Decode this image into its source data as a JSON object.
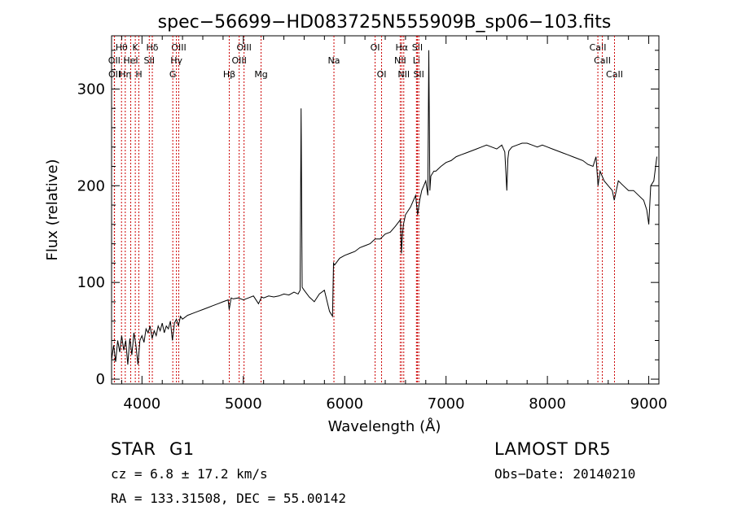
{
  "chart_data": {
    "type": "line",
    "title": "spec−56699−HD083725N555909B_sp06−103.fits",
    "xlabel": "Wavelength (Å)",
    "ylabel": "Flux (relative)",
    "xlim": [
      3700,
      9100
    ],
    "ylim": [
      -5,
      355
    ],
    "x_ticks": [
      4000,
      5000,
      6000,
      7000,
      8000,
      9000
    ],
    "y_ticks": [
      0,
      100,
      200,
      300
    ],
    "grid": false,
    "line_color": "#000000",
    "marker_color": "#cc0000",
    "series": [
      {
        "x": [
          3700,
          3720,
          3740,
          3760,
          3780,
          3800,
          3820,
          3840,
          3860,
          3880,
          3900,
          3920,
          3940,
          3960,
          3980,
          4000,
          4020,
          4040,
          4060,
          4080,
          4100,
          4120,
          4140,
          4160,
          4180,
          4200,
          4220,
          4240,
          4260,
          4280,
          4300,
          4320,
          4340,
          4360,
          4380,
          4400,
          4450,
          4500,
          4550,
          4600,
          4650,
          4700,
          4750,
          4800,
          4850,
          4860,
          4880,
          4900,
          4950,
          5000,
          5050,
          5100,
          5150,
          5180,
          5200,
          5250,
          5300,
          5350,
          5400,
          5450,
          5500,
          5540,
          5560,
          5570,
          5580,
          5600,
          5650,
          5700,
          5750,
          5800,
          5850,
          5880,
          5890,
          5900,
          5950,
          6000,
          6050,
          6100,
          6150,
          6200,
          6250,
          6300,
          6350,
          6400,
          6450,
          6500,
          6550,
          6560,
          6570,
          6580,
          6600,
          6650,
          6700,
          6720,
          6740,
          6760,
          6780,
          6800,
          6820,
          6830,
          6840,
          6850,
          6880,
          6900,
          6950,
          7000,
          7050,
          7100,
          7150,
          7200,
          7250,
          7300,
          7350,
          7400,
          7450,
          7500,
          7550,
          7580,
          7600,
          7610,
          7620,
          7650,
          7700,
          7750,
          7800,
          7850,
          7900,
          7950,
          8000,
          8050,
          8100,
          8150,
          8200,
          8250,
          8300,
          8350,
          8400,
          8450,
          8480,
          8500,
          8520,
          8540,
          8560,
          8600,
          8640,
          8660,
          8700,
          8750,
          8800,
          8850,
          8900,
          8950,
          8980,
          9000,
          9020,
          9050,
          9080
        ],
        "y": [
          20,
          35,
          18,
          40,
          28,
          45,
          30,
          40,
          15,
          42,
          25,
          48,
          35,
          15,
          40,
          45,
          38,
          52,
          48,
          55,
          42,
          50,
          45,
          55,
          50,
          58,
          48,
          55,
          52,
          60,
          40,
          58,
          62,
          55,
          65,
          62,
          66,
          68,
          70,
          72,
          74,
          76,
          78,
          80,
          82,
          72,
          84,
          83,
          84,
          82,
          84,
          86,
          78,
          85,
          84,
          86,
          85,
          86,
          88,
          87,
          90,
          88,
          92,
          280,
          95,
          92,
          85,
          80,
          88,
          92,
          70,
          65,
          120,
          118,
          125,
          128,
          130,
          132,
          136,
          138,
          140,
          145,
          145,
          150,
          152,
          158,
          165,
          130,
          150,
          160,
          170,
          178,
          190,
          170,
          185,
          195,
          200,
          205,
          190,
          340,
          195,
          210,
          215,
          215,
          220,
          224,
          226,
          230,
          232,
          234,
          236,
          238,
          240,
          242,
          240,
          238,
          242,
          235,
          195,
          228,
          236,
          240,
          242,
          244,
          244,
          242,
          240,
          242,
          240,
          238,
          236,
          234,
          232,
          230,
          228,
          226,
          222,
          220,
          230,
          200,
          215,
          210,
          205,
          200,
          195,
          185,
          205,
          200,
          195,
          195,
          190,
          185,
          175,
          160,
          200,
          205,
          230
        ]
      }
    ],
    "lines": [
      {
        "name": "Hθ",
        "wl": 3798,
        "row": 1
      },
      {
        "name": "OII",
        "wl": 3727,
        "row": 2
      },
      {
        "name": "OII",
        "wl": 3729,
        "row": 3
      },
      {
        "name": "Hη",
        "wl": 3835,
        "row": 3
      },
      {
        "name": "HeI",
        "wl": 3889,
        "row": 2
      },
      {
        "name": "K",
        "wl": 3934,
        "row": 1
      },
      {
        "name": "H",
        "wl": 3969,
        "row": 3
      },
      {
        "name": "Hδ",
        "wl": 4102,
        "row": 1
      },
      {
        "name": "SII",
        "wl": 4072,
        "row": 2
      },
      {
        "name": "OIII",
        "wl": 4363,
        "row": 1
      },
      {
        "name": "Hγ",
        "wl": 4340,
        "row": 2
      },
      {
        "name": "G",
        "wl": 4304,
        "row": 3
      },
      {
        "name": "Hβ",
        "wl": 4861,
        "row": 3
      },
      {
        "name": "OIII",
        "wl": 4959,
        "row": 2
      },
      {
        "name": "OIII",
        "wl": 5007,
        "row": 1
      },
      {
        "name": "Mg",
        "wl": 5175,
        "row": 3
      },
      {
        "name": "Na",
        "wl": 5894,
        "row": 2
      },
      {
        "name": "OI",
        "wl": 6300,
        "row": 1
      },
      {
        "name": "OI",
        "wl": 6364,
        "row": 3
      },
      {
        "name": "NII",
        "wl": 6548,
        "row": 2
      },
      {
        "name": "Hα",
        "wl": 6563,
        "row": 1
      },
      {
        "name": "NII",
        "wl": 6583,
        "row": 3
      },
      {
        "name": "Li",
        "wl": 6708,
        "row": 2
      },
      {
        "name": "SII",
        "wl": 6717,
        "row": 1
      },
      {
        "name": "SII",
        "wl": 6731,
        "row": 3
      },
      {
        "name": "CaII",
        "wl": 8498,
        "row": 1
      },
      {
        "name": "CaII",
        "wl": 8542,
        "row": 2
      },
      {
        "name": "CaII",
        "wl": 8662,
        "row": 3
      }
    ]
  },
  "info": {
    "object_class": "STAR",
    "subclass": "G1",
    "survey": "LAMOST DR5",
    "redshift": "cz = 6.8 ± 17.2 km/s",
    "obs_date": "Obs−Date: 20140210",
    "coords": "RA = 133.31508, DEC =  55.00142"
  }
}
